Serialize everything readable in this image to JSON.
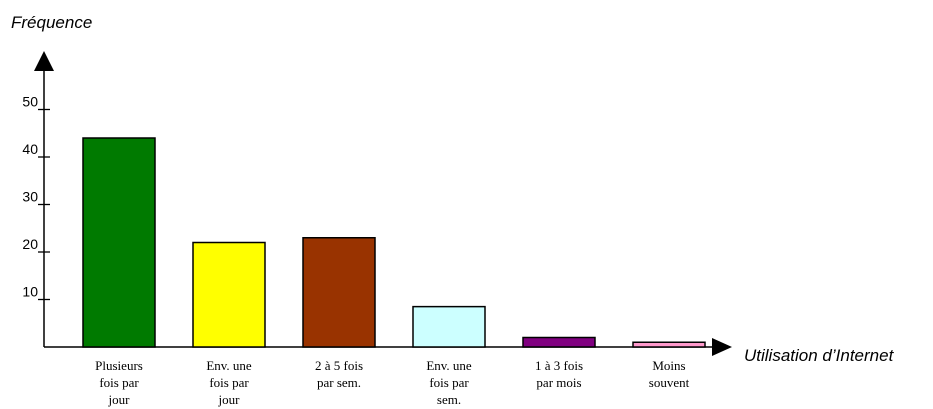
{
  "chart_data": {
    "type": "bar",
    "ylabel": "Fréquence",
    "xlabel": "Utilisation d’Internet",
    "ylim": [
      0,
      50
    ],
    "yticks": [
      10,
      20,
      30,
      40,
      50
    ],
    "grid": false,
    "categories": [
      [
        "Plusieurs",
        "fois par",
        "jour"
      ],
      [
        "Env. une",
        "fois par",
        "jour"
      ],
      [
        "2 à 5 fois",
        "par sem."
      ],
      [
        "Env. une",
        "fois par",
        "sem."
      ],
      [
        "1 à 3 fois",
        "par mois"
      ],
      [
        "Moins",
        "souvent"
      ]
    ],
    "values": [
      44,
      22,
      23,
      8.5,
      2,
      1
    ],
    "colors": [
      "#007a00",
      "#ffff00",
      "#993300",
      "#ccffff",
      "#800080",
      "#ff99cc"
    ]
  }
}
